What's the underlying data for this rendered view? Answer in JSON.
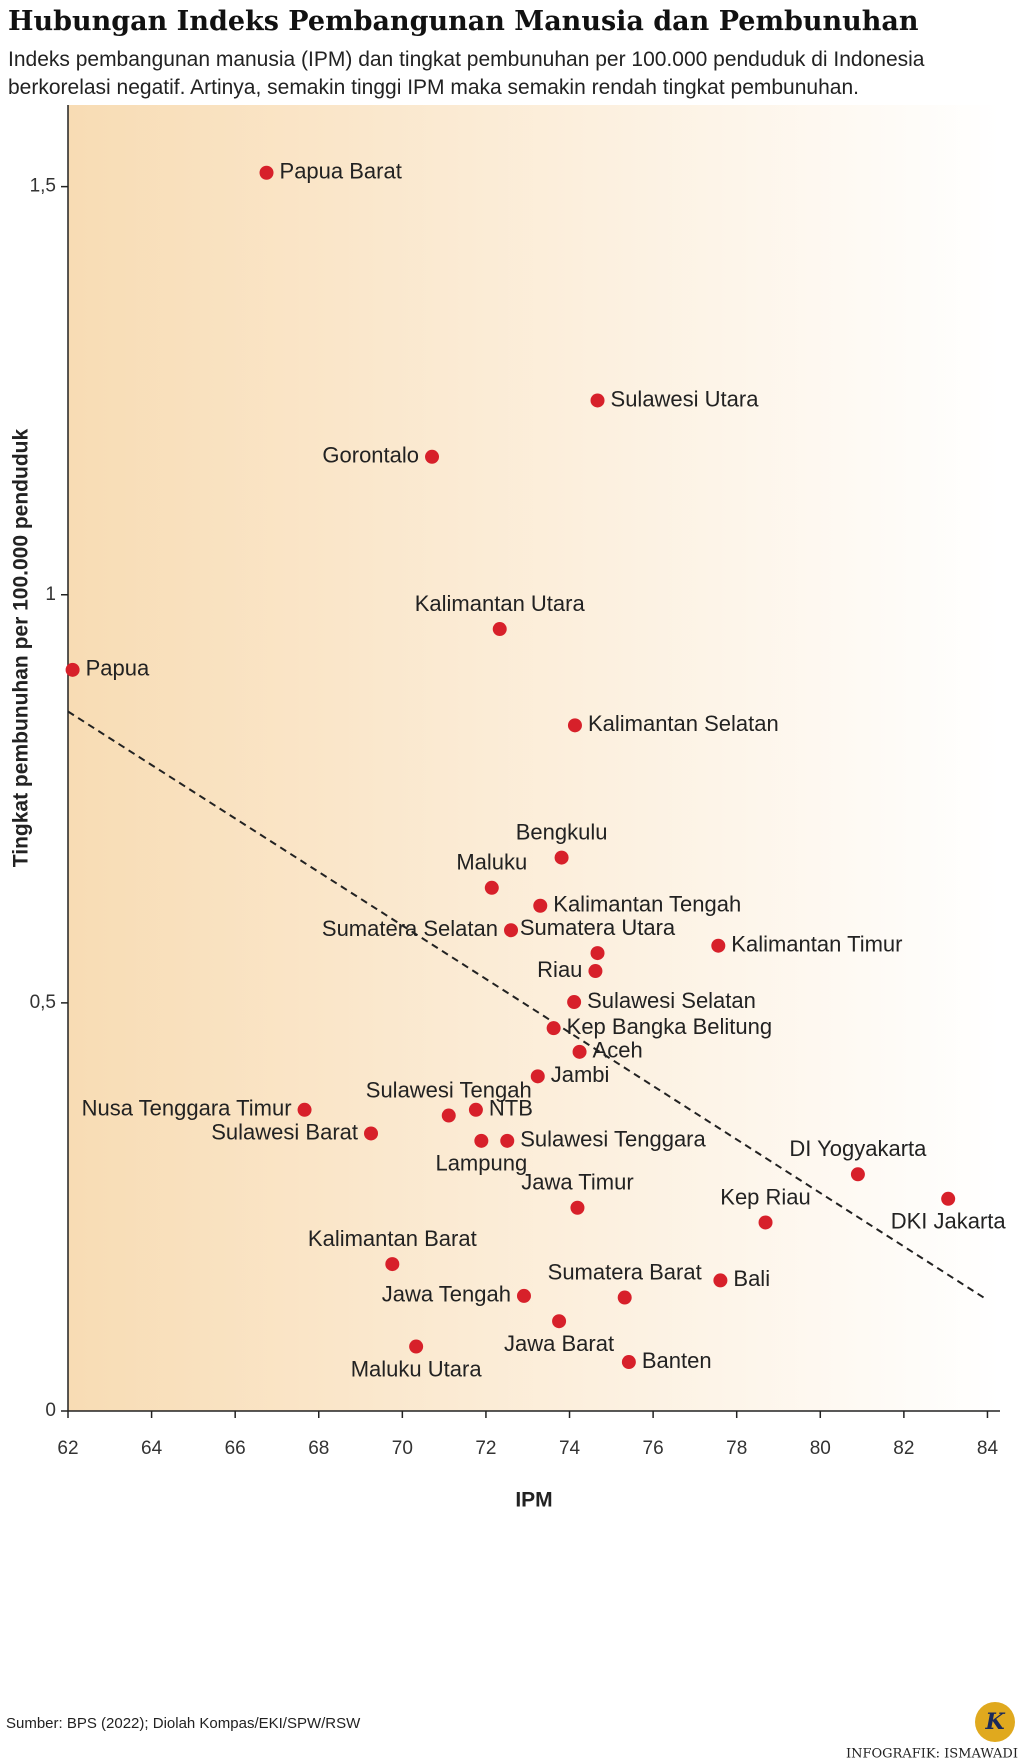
{
  "chart_data": {
    "type": "scatter",
    "title": "Hubungan Indeks Pembangunan Manusia dan Pembunuhan",
    "subtitle": "Indeks pembangunan manusia (IPM) dan tingkat pembunuhan per 100.000 penduduk di Indonesia berkorelasi negatif. Artinya, semakin tinggi IPM maka semakin rendah tingkat pembunuhan.",
    "x_label": "IPM",
    "y_label": "Tingkat pembunuhan per 100.000 penduduk",
    "source": "Sumber: BPS (2022); Diolah Kompas/EKI/SPW/RSW",
    "credit": "INFOGRAFIK: ISMAWADI",
    "logo_text": "K",
    "color": "#d7202a",
    "labels": [
      "Papua Barat",
      "Sulawesi Utara",
      "Gorontalo",
      "Kalimantan Utara",
      "Papua",
      "Kalimantan Selatan",
      "Bengkulu",
      "Maluku",
      "Kalimantan Tengah",
      "Sumatera Selatan",
      "Sumatera Utara",
      "Kalimantan Timur",
      "Riau",
      "Sulawesi Selatan",
      "Kep Bangka Belitung",
      "Aceh",
      "Jambi",
      "NTB",
      "Sulawesi Tengah",
      "Nusa Tenggara Timur",
      "Sulawesi Barat",
      "Lampung",
      "Sulawesi Tenggara",
      "DI Yogyakarta",
      "DKI Jakarta",
      "Jawa Timur",
      "Kep Riau",
      "Kalimantan Barat",
      "Bali",
      "Sumatera Barat",
      "Jawa Tengah",
      "Jawa Barat",
      "Maluku Utara",
      "Banten"
    ],
    "x": [
      66.75,
      74.67,
      70.71,
      72.33,
      62.11,
      74.13,
      73.81,
      72.14,
      73.3,
      72.6,
      74.67,
      77.56,
      74.62,
      74.11,
      73.62,
      74.24,
      73.24,
      71.76,
      71.11,
      67.66,
      69.25,
      71.89,
      72.51,
      80.9,
      83.06,
      74.19,
      78.69,
      69.76,
      77.61,
      75.32,
      72.91,
      73.75,
      70.33,
      75.42
    ],
    "y": [
      1.517,
      1.238,
      1.169,
      0.958,
      0.908,
      0.84,
      0.678,
      0.641,
      0.619,
      0.589,
      0.561,
      0.57,
      0.539,
      0.501,
      0.469,
      0.44,
      0.41,
      0.369,
      0.362,
      0.369,
      0.34,
      0.331,
      0.331,
      0.29,
      0.26,
      0.249,
      0.231,
      0.18,
      0.16,
      0.139,
      0.141,
      0.11,
      0.079,
      0.06
    ],
    "trendline": {
      "x": [
        62,
        84
      ],
      "y": [
        0.857,
        0.136
      ]
    },
    "xlim": [
      62,
      84.3
    ],
    "ylim": [
      0,
      1.6
    ],
    "xticks": [
      62,
      64,
      66,
      68,
      70,
      72,
      74,
      76,
      78,
      80,
      82,
      84
    ],
    "yticks": [
      0,
      {
        "value": 0.5,
        "label": "0,5"
      },
      1,
      {
        "value": 1.5,
        "label": "1,5"
      }
    ]
  }
}
